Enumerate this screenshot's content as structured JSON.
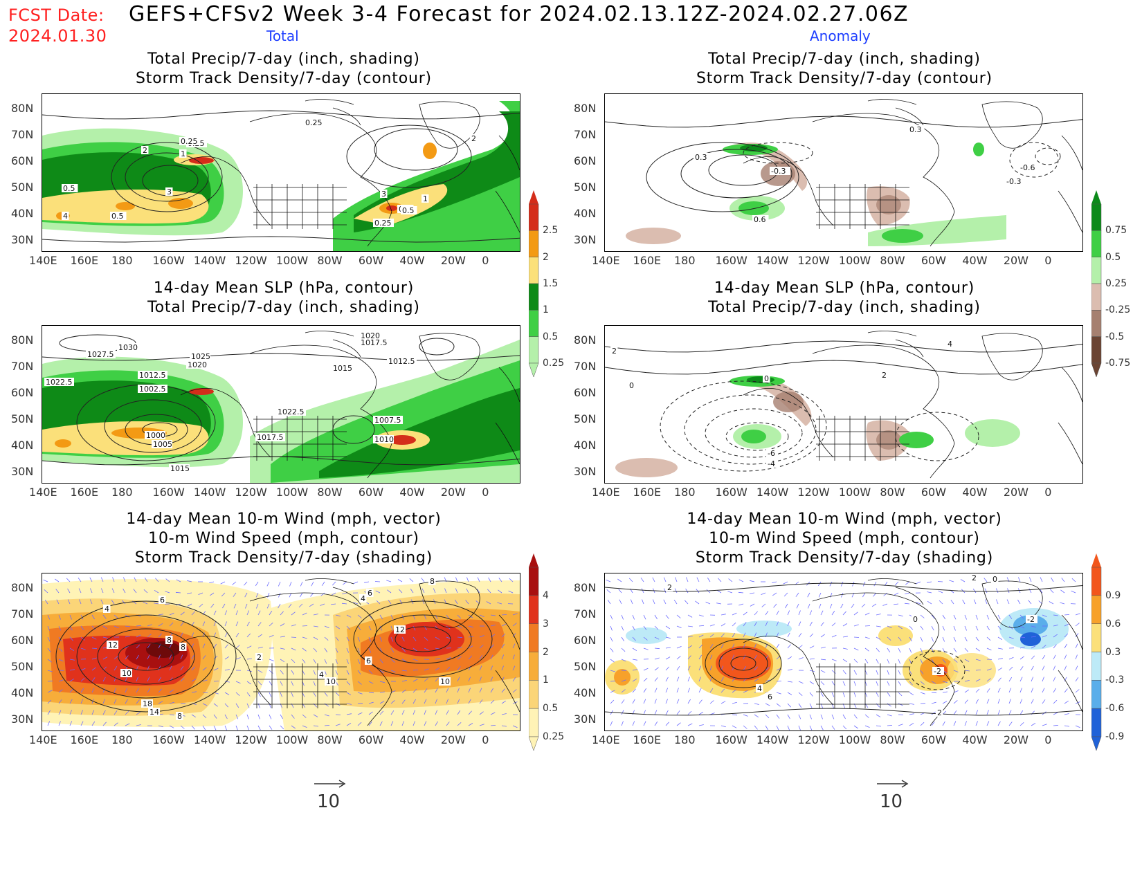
{
  "header": {
    "fcst_label": "FCST Date:",
    "fcst_date": "2024.01.30",
    "title": "GEFS+CFSv2 Week 3-4 Forecast for 2024.02.13.12Z-2024.02.27.06Z",
    "col_total": "Total",
    "col_anomaly": "Anomaly"
  },
  "panels": {
    "precip_total": {
      "title1": "Total Precip/7-day (inch, shading)",
      "title2": "Storm Track Density/7-day (contour)"
    },
    "precip_anom": {
      "title1": "Total Precip/7-day (inch, shading)",
      "title2": "Storm Track Density/7-day (contour)"
    },
    "slp_total": {
      "title1": "14-day Mean SLP (hPa, contour)",
      "title2": "Total Precip/7-day (inch, shading)"
    },
    "slp_anom": {
      "title1": "14-day Mean SLP (hPa, contour)",
      "title2": "Total Precip/7-day (inch, shading)"
    },
    "wind_total": {
      "title1": "14-day Mean 10-m Wind (mph, vector)",
      "title2": "10-m Wind Speed (mph, contour)",
      "title3": "Storm Track Density/7-day (shading)"
    },
    "wind_anom": {
      "title1": "14-day Mean 10-m Wind (mph, vector)",
      "title2": "10-m Wind Speed (mph, contour)",
      "title3": "Storm Track Density/7-day (shading)"
    }
  },
  "axes": {
    "lat_labels": [
      "80N",
      "70N",
      "60N",
      "50N",
      "40N",
      "30N"
    ],
    "lon_labels": [
      "140E",
      "160E",
      "180",
      "160W",
      "140W",
      "120W",
      "100W",
      "80W",
      "60W",
      "40W",
      "20W",
      "0"
    ]
  },
  "colorbars": {
    "precip_total": {
      "labels": [
        "2.5",
        "2",
        "1.5",
        "1",
        "0.5",
        "0.25"
      ],
      "colors": [
        "#d42d1a",
        "#f39a14",
        "#fbe07a",
        "#0e8a17",
        "#3fcf45",
        "#b4f0aa"
      ]
    },
    "precip_anom": {
      "labels": [
        "0.75",
        "0.5",
        "0.25",
        "-0.25",
        "-0.5",
        "-0.75"
      ],
      "colors": [
        "#0c8a1a",
        "#3fcf45",
        "#b4f0aa",
        "#dbbdb0",
        "#a68070",
        "#6b4433"
      ]
    },
    "storm_total": {
      "labels": [
        "4",
        "3",
        "2",
        "1",
        "0.5",
        "0.25"
      ],
      "colors": [
        "#a81010",
        "#e0321c",
        "#f07a22",
        "#f7ad3a",
        "#fbd578",
        "#fff3b6"
      ]
    },
    "storm_anom": {
      "labels": [
        "0.9",
        "0.6",
        "0.3",
        "-0.3",
        "-0.6",
        "-0.9"
      ],
      "colors": [
        "#f2561c",
        "#f7a12a",
        "#fbe07a",
        "#bdeaf7",
        "#5aaeea",
        "#2062d8"
      ]
    }
  },
  "vector_reference": {
    "left": "10",
    "right": "10"
  },
  "contour_labels": {
    "precip_total": [
      "0.25",
      "0.5",
      "1",
      "2",
      "3",
      "4",
      "0.5",
      "0.25",
      "0.25",
      "2",
      "3",
      "0.5",
      "1",
      "0.5",
      "0.25"
    ],
    "precip_anom": [
      "0.3",
      "-0.3",
      "0.6",
      "-0.6",
      "-0.3",
      "0.3"
    ],
    "slp_total": [
      "1030",
      "1027.5",
      "1025",
      "1020",
      "1022.5",
      "1012.5",
      "1002.5",
      "1000",
      "1005",
      "1015",
      "1020",
      "1017.5",
      "1012.5",
      "1015",
      "1022.5",
      "1017.5",
      "1007.5",
      "1010"
    ],
    "slp_anom": [
      "2",
      "0",
      "-6",
      "-4",
      "4",
      "0",
      "2"
    ],
    "wind_total": [
      "6",
      "4",
      "8",
      "12",
      "8",
      "10",
      "18",
      "14",
      "8",
      "4",
      "2",
      "6",
      "10",
      "8",
      "12",
      "6",
      "10",
      "4"
    ],
    "wind_anom": [
      "2",
      "0",
      "2",
      "4",
      "6",
      "-2",
      "0",
      "2",
      "-2"
    ]
  }
}
